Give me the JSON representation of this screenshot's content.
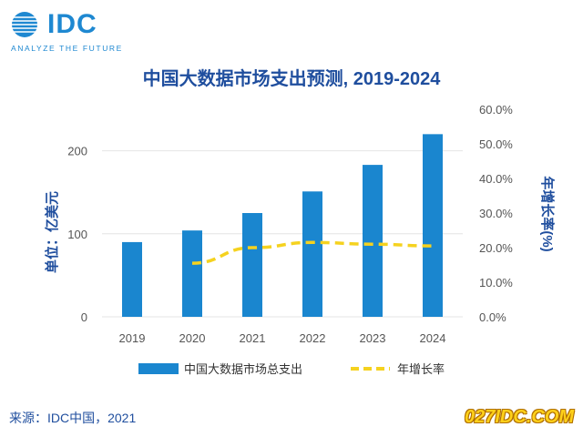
{
  "header": {
    "logo_text": "IDC",
    "logo_tagline": "ANALYZE THE FUTURE"
  },
  "footer": {
    "source": "来源：IDC中国，2021",
    "watermark": "027IDC.COM"
  },
  "colors": {
    "bar": "#1a86cf",
    "growth_line": "#f5d21f",
    "title": "#1f4e9e",
    "axis_text": "#1f4e9e",
    "tick_text": "#555555",
    "logo": "#1e88d1"
  },
  "chart_data": {
    "type": "bar",
    "title": "中国大数据市场支出预测, 2019-2024",
    "categories": [
      "2019",
      "2020",
      "2021",
      "2022",
      "2023",
      "2024"
    ],
    "ylabel": "单位：亿美元",
    "ylabel_right": "年增长率(%)",
    "ylim": [
      0,
      250
    ],
    "yticks": [
      0,
      100,
      200
    ],
    "y2lim": [
      0,
      60
    ],
    "y2ticks": [
      "0.0%",
      "10.0%",
      "20.0%",
      "30.0%",
      "40.0%",
      "50.0%",
      "60.0%"
    ],
    "series": [
      {
        "name": "中国大数据市场总支出",
        "type": "bar",
        "axis": "left",
        "values": [
          90,
          104,
          125,
          151,
          183,
          220
        ]
      },
      {
        "name": "年增长率",
        "type": "line",
        "style": "dashed",
        "axis": "right",
        "values": [
          null,
          15.5,
          20,
          21.5,
          21,
          20.5
        ]
      }
    ],
    "legend_position": "bottom"
  }
}
